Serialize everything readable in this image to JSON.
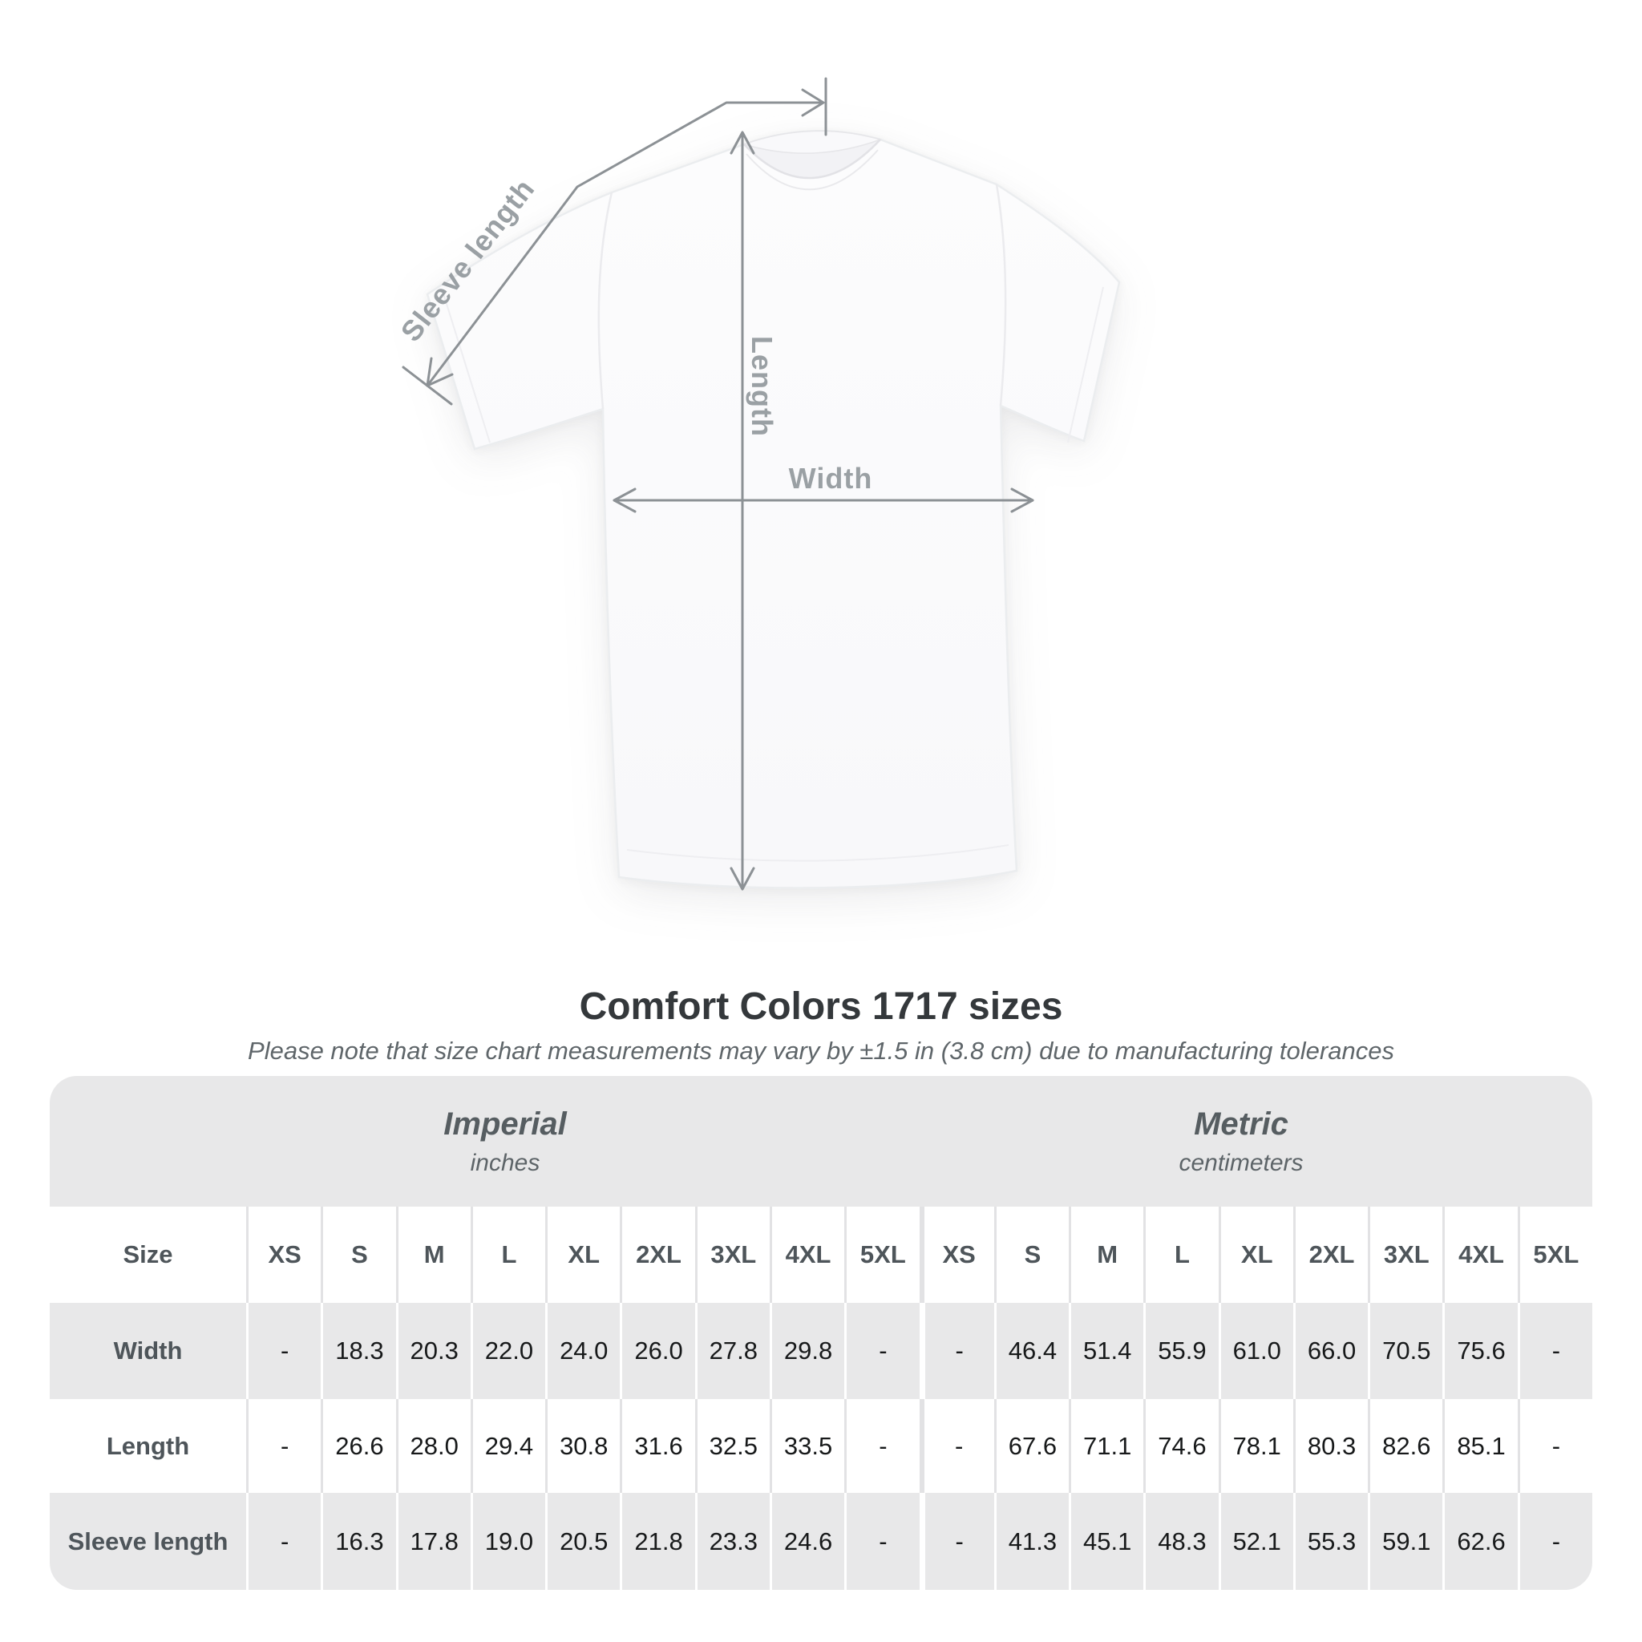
{
  "page": {
    "title": "Comfort Colors 1717 sizes",
    "subtitle": "Please note that size chart measurements may vary by ±1.5 in (3.8 cm) due to manufacturing tolerances"
  },
  "diagram": {
    "labels": {
      "sleeve_length": "Sleeve length",
      "length": "Length",
      "width": "Width"
    }
  },
  "table": {
    "size_header": "Size",
    "sizes": [
      "XS",
      "S",
      "M",
      "L",
      "XL",
      "2XL",
      "3XL",
      "4XL",
      "5XL"
    ],
    "unit_groups": [
      {
        "name": "Imperial",
        "unit": "inches"
      },
      {
        "name": "Metric",
        "unit": "centimeters"
      }
    ],
    "rows": [
      {
        "label": "Width",
        "imperial": [
          "-",
          "18.3",
          "20.3",
          "22.0",
          "24.0",
          "26.0",
          "27.8",
          "29.8",
          "-"
        ],
        "metric": [
          "-",
          "46.4",
          "51.4",
          "55.9",
          "61.0",
          "66.0",
          "70.5",
          "75.6",
          "-"
        ]
      },
      {
        "label": "Length",
        "imperial": [
          "-",
          "26.6",
          "28.0",
          "29.4",
          "30.8",
          "31.6",
          "32.5",
          "33.5",
          "-"
        ],
        "metric": [
          "-",
          "67.6",
          "71.1",
          "74.6",
          "78.1",
          "80.3",
          "82.6",
          "85.1",
          "-"
        ]
      },
      {
        "label": "Sleeve length",
        "imperial": [
          "-",
          "16.3",
          "17.8",
          "19.0",
          "20.5",
          "21.8",
          "23.3",
          "24.6",
          "-"
        ],
        "metric": [
          "-",
          "41.3",
          "45.1",
          "48.3",
          "52.1",
          "55.3",
          "59.1",
          "62.6",
          "-"
        ]
      }
    ]
  },
  "colors": {
    "band_gray": "#e8e8e9",
    "annotation_line": "#8c9195",
    "annotation_label": "#9aa0a4",
    "heading_text": "#4e555a",
    "value_text": "#17191a",
    "title_text": "#34383b",
    "subtitle_text": "#5f666a"
  }
}
